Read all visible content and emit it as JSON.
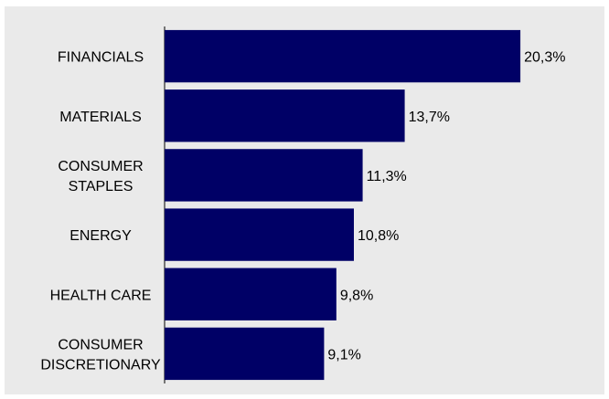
{
  "chart_data": {
    "type": "bar",
    "orientation": "horizontal",
    "title": "",
    "xlabel": "",
    "ylabel": "",
    "categories": [
      [
        "FINANCIALS"
      ],
      [
        "MATERIALS"
      ],
      [
        "CONSUMER",
        "STAPLES"
      ],
      [
        "ENERGY"
      ],
      [
        "HEALTH CARE"
      ],
      [
        "CONSUMER",
        "DISCRETIONARY"
      ]
    ],
    "values": [
      20.3,
      13.7,
      11.3,
      10.8,
      9.8,
      9.1
    ],
    "value_labels": [
      "20,3%",
      "13,7%",
      "11,3%",
      "10,8%",
      "9,8%",
      "9,1%"
    ],
    "xlim": [
      0,
      24
    ],
    "grid": false,
    "legend": "none",
    "colors": {
      "bar": "#000066",
      "background": "#eaeaea",
      "axis": "#000000"
    }
  }
}
